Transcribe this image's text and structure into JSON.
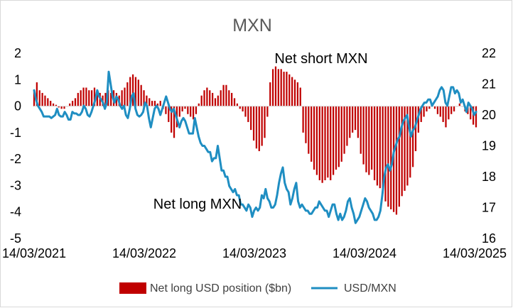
{
  "chart_data": {
    "type": "bar+line",
    "title": "MXN",
    "x_axis": {
      "tick_labels": [
        "14/03/2021",
        "14/03/2022",
        "14/03/2023",
        "14/03/2024",
        "14/03/2025"
      ]
    },
    "y_left": {
      "ylim": [
        -5,
        2
      ],
      "ticks": [
        2,
        1,
        0,
        -1,
        -2,
        -3,
        -4,
        -5
      ]
    },
    "y_right": {
      "ylim": [
        16,
        22
      ],
      "ticks": [
        22,
        21,
        20,
        19,
        18,
        17,
        16
      ]
    },
    "annotations": {
      "top": "Net short MXN",
      "bottom": "Net long MXN"
    },
    "series": [
      {
        "name": "Net long USD position ($bn)",
        "type": "bar",
        "axis": "left",
        "color": "#C00000",
        "start": "14/03/2021",
        "end": "14/03/2025",
        "values": [
          0.6,
          0.9,
          0.6,
          0.5,
          0.4,
          0.3,
          0.2,
          0.1,
          0.05,
          -0.05,
          -0.1,
          -0.1,
          0.0,
          0.1,
          0.2,
          0.3,
          0.5,
          0.6,
          0.7,
          0.7,
          0.6,
          0.6,
          0.7,
          0.6,
          0.5,
          0.4,
          0.5,
          0.6,
          0.5,
          0.6,
          0.5,
          0.4,
          0.6,
          0.7,
          0.9,
          1.1,
          1.2,
          1.1,
          1.0,
          0.8,
          0.6,
          0.4,
          0.3,
          0.2,
          0.2,
          0.1,
          0.2,
          -0.1,
          -0.3,
          -0.6,
          -1.0,
          -1.2,
          -0.8,
          -0.4,
          -0.2,
          -0.1,
          -0.3,
          -0.4,
          -0.5,
          -0.3,
          0.1,
          0.4,
          0.6,
          0.7,
          0.6,
          0.5,
          0.3,
          0.4,
          0.6,
          0.8,
          0.8,
          0.6,
          0.5,
          0.3,
          0.1,
          -0.1,
          -0.2,
          -0.4,
          -0.6,
          -0.9,
          -1.3,
          -1.6,
          -1.7,
          -1.5,
          -1.2,
          -0.4,
          0.9,
          1.4,
          1.5,
          1.4,
          1.4,
          1.3,
          1.3,
          1.2,
          1.1,
          1.0,
          0.9,
          0.7,
          -1.0,
          -1.4,
          -1.8,
          -2.1,
          -2.4,
          -2.6,
          -2.8,
          -2.9,
          -2.8,
          -2.7,
          -2.8,
          -2.6,
          -2.4,
          -2.3,
          -2.1,
          -1.8,
          -1.5,
          -1.2,
          -1.0,
          -0.9,
          -1.2,
          -1.8,
          -2.2,
          -2.5,
          -2.6,
          -2.4,
          -2.8,
          -3.0,
          -3.1,
          -3.3,
          -3.6,
          -3.8,
          -3.9,
          -4.0,
          -4.1,
          -3.8,
          -3.4,
          -3.2,
          -3.0,
          -2.7,
          -2.3,
          -1.7,
          -1.0,
          -0.6,
          -0.4,
          -0.2,
          -0.1,
          0.0,
          -0.1,
          -0.3,
          -0.4,
          -0.6,
          -0.8,
          -0.5,
          -0.3,
          -0.2,
          0.0,
          0.1,
          0.0,
          -0.2,
          -0.3,
          -0.5,
          -0.7,
          -0.8
        ]
      },
      {
        "name": "USD/MXN",
        "type": "line",
        "axis": "right",
        "color": "#1F8EC2",
        "start": "14/03/2021",
        "end": "14/03/2025",
        "values": [
          20.8,
          20.5,
          20.3,
          20.2,
          20.1,
          19.95,
          19.95,
          19.95,
          19.95,
          19.9,
          19.95,
          20.0,
          20.2,
          20.0,
          19.95,
          19.95,
          20.1,
          20.0,
          19.85,
          19.85,
          20.1,
          20.05,
          20.05,
          20.0,
          20.0,
          20.1,
          20.3,
          20.2,
          20.0,
          19.95,
          20.1,
          20.3,
          20.5,
          20.8,
          20.6,
          20.5,
          20.4,
          20.2,
          20.4,
          21.4,
          21.0,
          20.6,
          20.4,
          20.6,
          20.5,
          20.3,
          20.2,
          20.3,
          20.0,
          19.9,
          20.2,
          20.6,
          20.7,
          20.2,
          20.0,
          19.95,
          20.0,
          20.1,
          20.4,
          20.3,
          19.9,
          19.6,
          19.9,
          20.2,
          20.3,
          20.2,
          20.0,
          20.2,
          20.4,
          20.6,
          20.4,
          20.2,
          20.1,
          20.2,
          20.0,
          19.8,
          19.6,
          19.8,
          19.9,
          19.8,
          19.6,
          19.4,
          19.4,
          19.4,
          19.9,
          19.6,
          19.3,
          19.1,
          19.0,
          19.0,
          18.9,
          18.8,
          18.8,
          18.5,
          18.6,
          18.6,
          19.0,
          18.6,
          18.2,
          18.2,
          18.0,
          18.0,
          17.7,
          17.6,
          17.5,
          17.6,
          17.4,
          17.4,
          17.1,
          17.1,
          17.0,
          16.9,
          17.1,
          17.0,
          16.7,
          16.9,
          17.0,
          16.9,
          17.0,
          17.4,
          17.3,
          17.6,
          17.3,
          17.2,
          17.0,
          17.0,
          17.1,
          17.4,
          17.8,
          18.1,
          18.3,
          17.8,
          17.6,
          17.5,
          17.1,
          17.3,
          17.6,
          17.8,
          17.2,
          17.0,
          17.1,
          17.0,
          16.9,
          16.9,
          16.8,
          16.8,
          16.9,
          17.0,
          17.0,
          17.2,
          17.1,
          17.0,
          16.9,
          16.9,
          16.7,
          16.9,
          17.1,
          17.1,
          16.8,
          16.6,
          16.8,
          16.6,
          16.7,
          16.9,
          17.2,
          17.3,
          17.0,
          16.8,
          16.5,
          16.6,
          16.7,
          16.9,
          17.1,
          17.3,
          17.2,
          17.0,
          16.9,
          16.8,
          16.6,
          16.6,
          16.7,
          16.9,
          17.4,
          18.0,
          18.3,
          18.4,
          18.2,
          18.4,
          18.8,
          19.0,
          19.2,
          19.3,
          19.6,
          19.8,
          19.9,
          20.0,
          19.6,
          19.3,
          19.5,
          19.6,
          19.8,
          20.0,
          20.2,
          20.3,
          20.4,
          20.4,
          20.5,
          20.5,
          20.3,
          20.4,
          20.5,
          20.6,
          20.8,
          20.9,
          20.8,
          20.4,
          20.3,
          20.6,
          20.9,
          20.9,
          20.7,
          20.8,
          20.7,
          20.4,
          20.5,
          20.3,
          20.1,
          20.4,
          20.3,
          20.2,
          20.0,
          20.1
        ]
      }
    ]
  }
}
